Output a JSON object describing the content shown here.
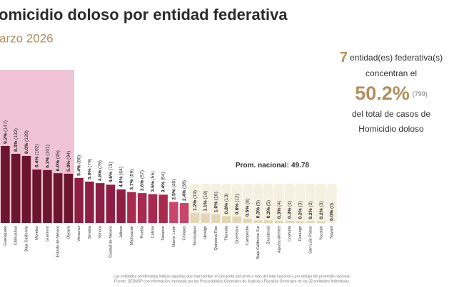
{
  "chart_data": {
    "type": "bar",
    "title": "omicidio doloso por entidad federativa",
    "subtitle": "arzo 2026",
    "categories": [
      "Guanajuato",
      "Chihuahua",
      "Baja California",
      "Morelos",
      "Guerrero",
      "Estado de México",
      "Oaxaca",
      "Veracruz",
      "Sinaloa",
      "Sonora",
      "Ciudad de México",
      "Jalisco",
      "Michoacán",
      "Puebla",
      "Colima",
      "Tabasco",
      "Nuevo León",
      "Chiapas",
      "Tamaulipas",
      "Hidalgo",
      "Quintana Roo",
      "Tlaxcala",
      "Querétaro",
      "Campeche",
      "Baja California Sur",
      "Zacatecas",
      "Aguascalientes",
      "Coahuila",
      "Durango",
      "San Luis Potosí",
      "Yucatán",
      "Nayarit"
    ],
    "values": [
      147,
      132,
      128,
      102,
      101,
      95,
      94,
      86,
      79,
      76,
      73,
      64,
      59,
      57,
      55,
      54,
      40,
      38,
      19,
      18,
      16,
      13,
      12,
      8,
      5,
      5,
      4,
      4,
      3,
      3,
      3,
      0
    ],
    "value_labels": [
      "(147)",
      "(132)",
      "(128)",
      "(102)",
      "(101)",
      "(95)",
      "(94)",
      "(86)",
      "(79)",
      "(76)",
      "(73)",
      "(64)",
      "(59)",
      "(57)",
      "(55)",
      "(54)",
      "(40)",
      "(38)",
      "(19)",
      "(18)",
      "(16)",
      "(13)",
      "(12)",
      "(8)",
      "(5)",
      "(5)",
      "(4)",
      "(4)",
      "(3)",
      "(3)",
      "(3)",
      "(0)"
    ],
    "percents": [
      9.2,
      8.3,
      8.0,
      6.4,
      6.3,
      6.0,
      5.9,
      5.4,
      5.0,
      4.8,
      4.6,
      4.0,
      3.7,
      3.6,
      3.5,
      3.4,
      2.5,
      2.4,
      1.2,
      1.1,
      1.0,
      0.8,
      0.8,
      0.5,
      0.3,
      0.3,
      0.3,
      0.3,
      0.2,
      0.2,
      0.2,
      0.0
    ],
    "percent_labels": [
      "9.2%",
      "8.3%",
      "8.0%",
      "6.4%",
      "6.3%",
      "6.0%",
      "5.9%",
      "5.4%",
      "5.0%",
      "4.8%",
      "4.6%",
      "4.0%",
      "3.7%",
      "3.6%",
      "3.5%",
      "3.4%",
      "2.5%",
      "2.4%",
      "1.2%",
      "1.1%",
      "1.0%",
      "0.8%",
      "0.8%",
      "0.5%",
      "0.3%",
      "0.3%",
      "0.3%",
      "0.3%",
      "0.2%",
      "0.2%",
      "0.2%",
      "0.0%"
    ],
    "colors": [
      "#6b1530",
      "#6b1530",
      "#6b1530",
      "#6b1530",
      "#6b1530",
      "#6b1530",
      "#6b1530",
      "#8e1e43",
      "#8e1e43",
      "#8e1e43",
      "#8e1e43",
      "#8e1e43",
      "#a82a4f",
      "#a82a4f",
      "#a82a4f",
      "#a82a4f",
      "#c8466a",
      "#c8466a",
      "#e3d6b6",
      "#e3d6b6",
      "#e3d6b6",
      "#e3d6b6",
      "#e3d6b6",
      "#e3d6b6",
      "#e3d6b6",
      "#e3d6b6",
      "#e3d6b6",
      "#e3d6b6",
      "#e3d6b6",
      "#e3d6b6",
      "#e3d6b6",
      "#e3d6b6"
    ],
    "reference": {
      "label": "Prom. nacional:",
      "value": 49.78
    },
    "summary": {
      "count": 7,
      "line1": "entidad(es) federativa(s)",
      "line2": "concentran el",
      "share": 50.2,
      "share_label": "50.2%",
      "total_label": "(799)",
      "line3": "del total de casos de",
      "line4": "Homicidio doloso"
    },
    "footnotes": [
      "Las entidades sombreadas indican aquellas que representan el cincuenta porciento o más del total nacional o por debajo del promedio nacional.",
      "Fuente: SESNSP con información reportada por las Procuradurías Generales de Justicia o Fiscalías Generales de las 32 entidades federativas."
    ]
  }
}
